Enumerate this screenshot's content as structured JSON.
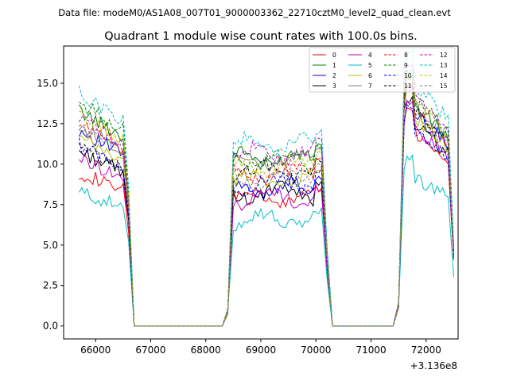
{
  "suptitle": "Data file: modeM0/AS1A08_007T01_9000003362_22710cztM0_level2_quad_clean.evt",
  "chart_data": {
    "type": "line",
    "title": "Quadrant 1 module wise count rates with 100.0s bins.",
    "xlabel": "",
    "ylabel": "",
    "x_offset_label": "+3.136e8",
    "xlim": [
      65420,
      72580
    ],
    "ylim": [
      -0.8,
      17.3
    ],
    "xticks": [
      66000,
      67000,
      68000,
      69000,
      70000,
      71000,
      72000
    ],
    "xtick_labels": [
      "66000",
      "67000",
      "68000",
      "69000",
      "70000",
      "71000",
      "72000"
    ],
    "yticks": [
      0,
      2.5,
      5,
      7.5,
      10,
      12.5,
      15
    ],
    "ytick_labels": [
      "0.0",
      "2.5",
      "5.0",
      "7.5",
      "10.0",
      "12.5",
      "15.0"
    ],
    "legend_location": "upper right",
    "segments": [
      {
        "x_start": 65700,
        "x_end": 66600,
        "drop_to_zero_at": 66700
      },
      {
        "zero_from": 66700,
        "zero_to": 68300
      },
      {
        "x_start": 68500,
        "x_end": 70100,
        "drop_from": 70200
      },
      {
        "zero_from": 70300,
        "zero_to": 71400
      },
      {
        "x_start": 71600,
        "x_end": 72500
      }
    ],
    "series": [
      {
        "name": "0",
        "color": "#ff0000",
        "dashed": false,
        "levels": [
          9.5,
          7.9,
          12.5,
          4.1
        ]
      },
      {
        "name": "1",
        "color": "#008000",
        "dashed": false,
        "levels": [
          13.3,
          10.4,
          14.2,
          4.8
        ]
      },
      {
        "name": "2",
        "color": "#0000ff",
        "dashed": false,
        "levels": [
          12.1,
          8.5,
          13.7,
          4.3
        ]
      },
      {
        "name": "3",
        "color": "#000000",
        "dashed": false,
        "levels": [
          10.8,
          8.2,
          13.0,
          4.2
        ]
      },
      {
        "name": "4",
        "color": "#bf00bf",
        "dashed": false,
        "levels": [
          10.4,
          7.9,
          12.8,
          4.1
        ]
      },
      {
        "name": "5",
        "color": "#00bfbf",
        "dashed": false,
        "levels": [
          8.3,
          6.6,
          9.6,
          3.0
        ]
      },
      {
        "name": "6",
        "color": "#bfbf00",
        "dashed": false,
        "levels": [
          11.6,
          9.0,
          13.4,
          4.4
        ]
      },
      {
        "name": "7",
        "color": "#808080",
        "dashed": false,
        "levels": [
          12.4,
          10.2,
          14.4,
          4.6
        ]
      },
      {
        "name": "8",
        "color": "#ff0000",
        "dashed": true,
        "levels": [
          12.5,
          9.4,
          13.8,
          4.5
        ]
      },
      {
        "name": "9",
        "color": "#008000",
        "dashed": true,
        "levels": [
          13.8,
          10.3,
          14.6,
          4.8
        ]
      },
      {
        "name": "10",
        "color": "#0000ff",
        "dashed": true,
        "levels": [
          11.2,
          8.8,
          12.6,
          4.3
        ]
      },
      {
        "name": "11",
        "color": "#000000",
        "dashed": true,
        "levels": [
          11.0,
          9.6,
          13.8,
          4.5
        ]
      },
      {
        "name": "12",
        "color": "#bf00bf",
        "dashed": true,
        "levels": [
          12.9,
          10.6,
          14.8,
          4.9
        ]
      },
      {
        "name": "13",
        "color": "#00bfbf",
        "dashed": true,
        "levels": [
          14.4,
          11.2,
          15.6,
          5.1
        ]
      },
      {
        "name": "14",
        "color": "#bfbf00",
        "dashed": true,
        "levels": [
          13.0,
          9.9,
          14.5,
          4.7
        ]
      },
      {
        "name": "15",
        "color": "#808080",
        "dashed": true,
        "levels": [
          12.2,
          9.1,
          13.6,
          4.4
        ]
      }
    ]
  }
}
